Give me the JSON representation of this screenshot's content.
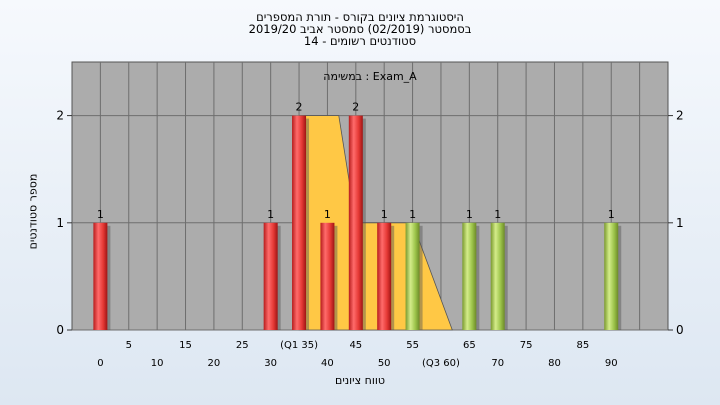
{
  "title_lines": [
    "היסטוגרמת ציונים בקורס - תורת המספרים",
    "בסמסטר  (02/2019)  סמסטר אביב 2019/20",
    "סטודנטים רשומים - 14"
  ],
  "annotation": "במשימה : Exam_A",
  "colors": {
    "red_bar": "#e8363b",
    "green_bar": "#9cc44a",
    "yellow_area": "#ffc845",
    "plot_bg": "#acacac",
    "grid": "#6e6e6e"
  },
  "chart_data": {
    "type": "bar",
    "title": "היסטוגרמת ציונים בקורס - תורת המספרים",
    "xlabel": "טווח ציונים",
    "ylabel": "מספר סטודנטים",
    "xlim": [
      -5,
      100
    ],
    "ylim": [
      0,
      2.5
    ],
    "y_ticks": [
      0,
      1,
      2
    ],
    "grid": true,
    "tick_labels_top_row": [
      "5",
      "15",
      "25",
      "(Q1 35)",
      "45",
      "55",
      "65",
      "75",
      "85"
    ],
    "tick_labels_top_positions": [
      5,
      15,
      25,
      35,
      45,
      55,
      65,
      75,
      85
    ],
    "tick_labels_bottom_row": [
      "0",
      "10",
      "20",
      "30",
      "40",
      "50",
      "(Q3 60)",
      "70",
      "80",
      "90"
    ],
    "tick_labels_bottom_positions": [
      0,
      10,
      20,
      30,
      40,
      50,
      60,
      70,
      80,
      90
    ],
    "bars": [
      {
        "x": 0,
        "value": 1,
        "color": "red"
      },
      {
        "x": 30,
        "value": 1,
        "color": "red"
      },
      {
        "x": 35,
        "value": 2,
        "color": "red"
      },
      {
        "x": 40,
        "value": 1,
        "color": "red"
      },
      {
        "x": 45,
        "value": 2,
        "color": "red"
      },
      {
        "x": 50,
        "value": 1,
        "color": "red"
      },
      {
        "x": 55,
        "value": 1,
        "color": "green"
      },
      {
        "x": 65,
        "value": 1,
        "color": "green"
      },
      {
        "x": 70,
        "value": 1,
        "color": "green"
      },
      {
        "x": 90,
        "value": 1,
        "color": "green"
      }
    ],
    "area": [
      [
        35,
        2
      ],
      [
        42,
        2
      ],
      [
        45,
        1
      ],
      [
        55,
        1
      ],
      [
        62,
        0
      ],
      [
        35,
        0
      ]
    ]
  }
}
